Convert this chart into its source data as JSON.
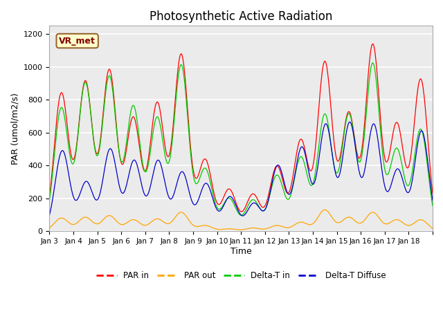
{
  "title": "Photosynthetic Active Radiation",
  "ylabel": "PAR (umol/m2/s)",
  "xlabel": "Time",
  "ylim": [
    0,
    1250
  ],
  "bg_color": "#ebebeb",
  "label_color": "#800000",
  "box_label": "VR_met",
  "legend_labels": [
    "PAR in",
    "PAR out",
    "Delta-T in",
    "Delta-T Diffuse"
  ],
  "colors": {
    "par_in": "#ff0000",
    "par_out": "#ffa500",
    "delta_t_in": "#00cc00",
    "delta_t_diffuse": "#0000cc"
  },
  "tick_labels": [
    "Jan 3",
    "Jan 4",
    "Jan 5",
    "Jan 6",
    "Jan 7",
    "Jan 8",
    "Jan 9",
    "Jan 10",
    "Jan 11",
    "Jan 12",
    "Jan 13",
    "Jan 14",
    "Jan 15",
    "Jan 16",
    "Jan 17",
    "Jan 18"
  ],
  "num_days": 16,
  "day_peaks": {
    "par_in": [
      840,
      910,
      980,
      690,
      780,
      1075,
      435,
      255,
      225,
      395,
      555,
      1030,
      720,
      1135,
      655,
      925
    ],
    "par_out": [
      80,
      85,
      95,
      70,
      75,
      115,
      35,
      15,
      20,
      35,
      55,
      130,
      85,
      115,
      70,
      70
    ],
    "delta_t_in": [
      750,
      900,
      940,
      760,
      690,
      1010,
      380,
      200,
      190,
      340,
      450,
      710,
      710,
      1020,
      500,
      620
    ],
    "delta_t_dif": [
      490,
      300,
      500,
      430,
      430,
      360,
      290,
      210,
      170,
      400,
      510,
      650,
      660,
      650,
      375,
      610
    ]
  }
}
